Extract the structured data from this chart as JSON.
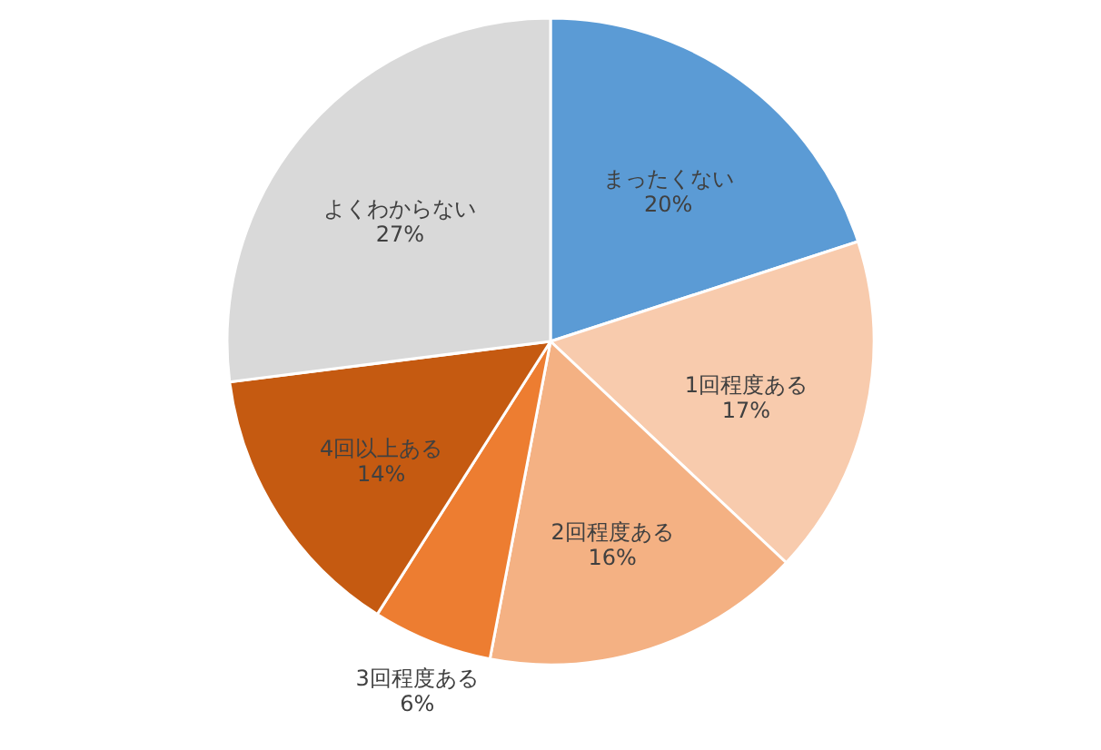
{
  "chart_data": {
    "type": "pie",
    "categories": [
      "まったくない",
      "1回程度ある",
      "2回程度ある",
      "3回程度ある",
      "4回以上ある",
      "よくわからない"
    ],
    "values": [
      20,
      17,
      16,
      6,
      14,
      27
    ],
    "value_labels": [
      "20%",
      "17%",
      "16%",
      "6%",
      "14%",
      "27%"
    ],
    "colors": [
      "#5b9bd5",
      "#f8cbad",
      "#f4b183",
      "#ed7d31",
      "#c55a11",
      "#d9d9d9"
    ]
  }
}
